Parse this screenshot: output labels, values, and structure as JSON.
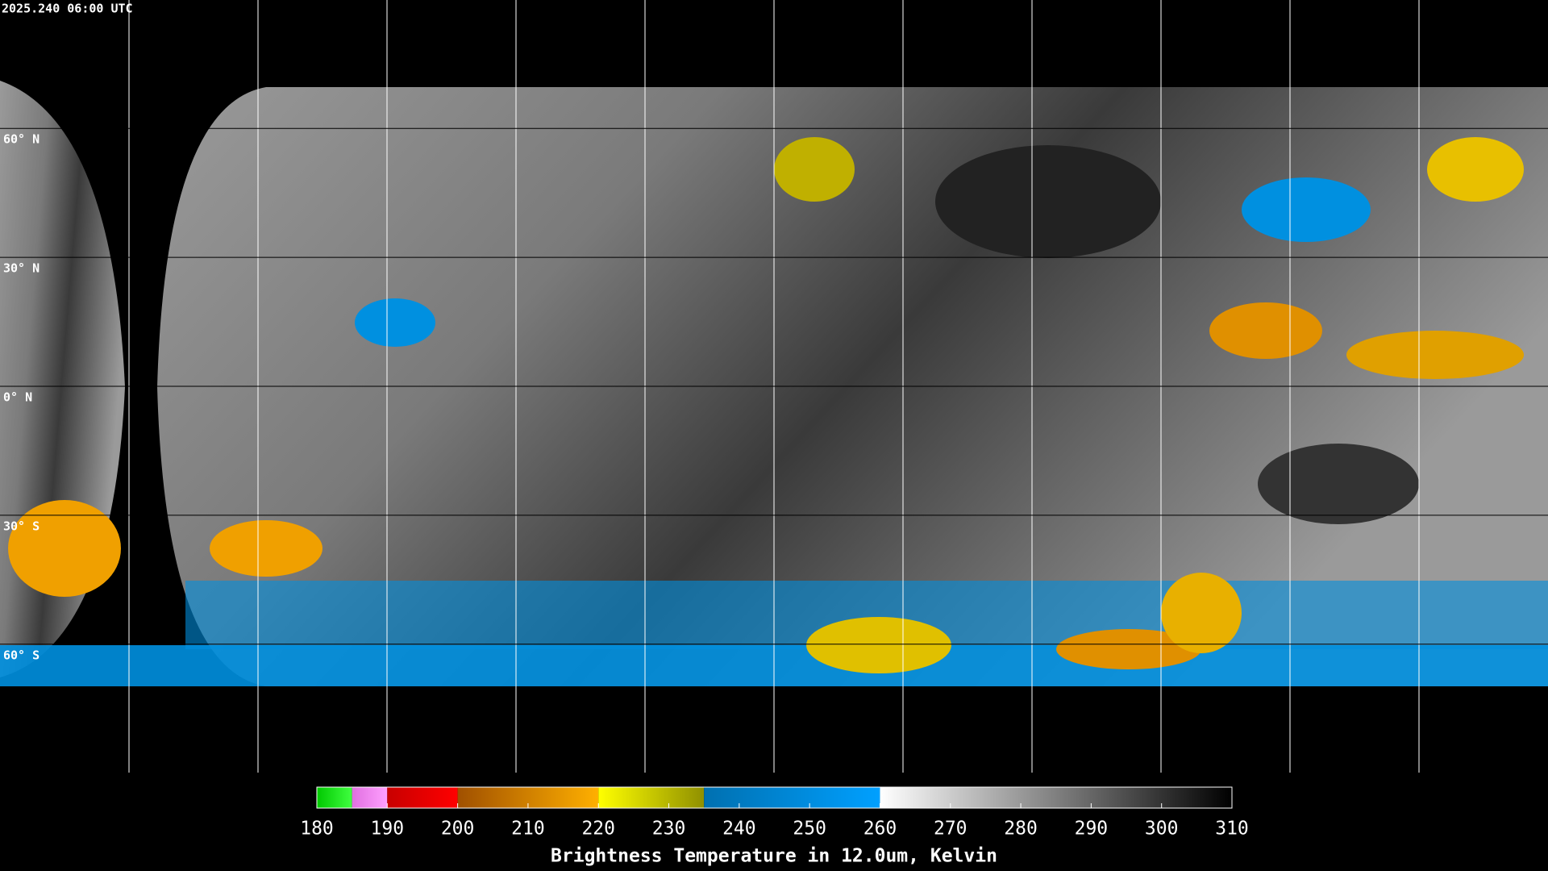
{
  "header": {
    "timestamp": "2025.240 06:00 UTC"
  },
  "map": {
    "lat_lines": [
      {
        "value": 60,
        "label": "60° N"
      },
      {
        "value": 30,
        "label": "30° N"
      },
      {
        "value": 0,
        "label": "0° N"
      },
      {
        "value": -30,
        "label": "30° S"
      },
      {
        "value": -60,
        "label": "60° S"
      }
    ]
  },
  "colorbar": {
    "title": "Brightness Temperature in 12.0um, Kelvin",
    "lim": [
      180,
      310
    ],
    "ticks": [
      180,
      190,
      200,
      210,
      220,
      230,
      240,
      250,
      260,
      270,
      280,
      290,
      300,
      310
    ],
    "segments": [
      {
        "from": 180,
        "to": 185,
        "colors": [
          "#00c800",
          "#40ff40"
        ]
      },
      {
        "from": 185,
        "to": 190,
        "colors": [
          "#e070e0",
          "#ffa0ff"
        ]
      },
      {
        "from": 190,
        "to": 200,
        "colors": [
          "#c80000",
          "#ff0000"
        ]
      },
      {
        "from": 200,
        "to": 220,
        "colors": [
          "#a05000",
          "#ffb000"
        ]
      },
      {
        "from": 220,
        "to": 235,
        "colors": [
          "#ffff00",
          "#909000"
        ]
      },
      {
        "from": 235,
        "to": 260,
        "colors": [
          "#0070b0",
          "#00a0ff"
        ]
      },
      {
        "from": 260,
        "to": 310,
        "colors": [
          "#ffffff",
          "#000000"
        ]
      }
    ]
  }
}
